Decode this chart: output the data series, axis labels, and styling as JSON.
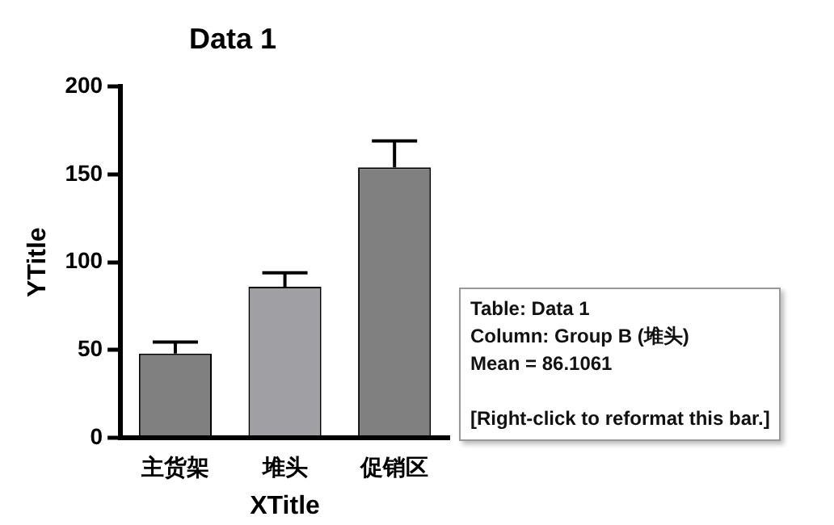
{
  "chart_data": {
    "type": "bar",
    "title": "Data 1",
    "xlabel": "XTitle",
    "ylabel": "YTitle",
    "categories": [
      "主货架",
      "堆头",
      "促销区"
    ],
    "values": [
      48,
      86,
      154
    ],
    "errors": [
      [
        48,
        54.5
      ],
      [
        86,
        94
      ],
      [
        154,
        169
      ]
    ],
    "colors": [
      "#808080",
      "#a0a0a4",
      "#808080"
    ],
    "ylim": [
      0,
      200
    ],
    "yticks": [
      0,
      50,
      100,
      150,
      200
    ],
    "grid": false,
    "legend": false,
    "annotations": [
      "Table: Data 1",
      "Column: Group B (堆头)",
      "Mean = 86.1061",
      "[Right-click to reformat this bar.]"
    ]
  }
}
